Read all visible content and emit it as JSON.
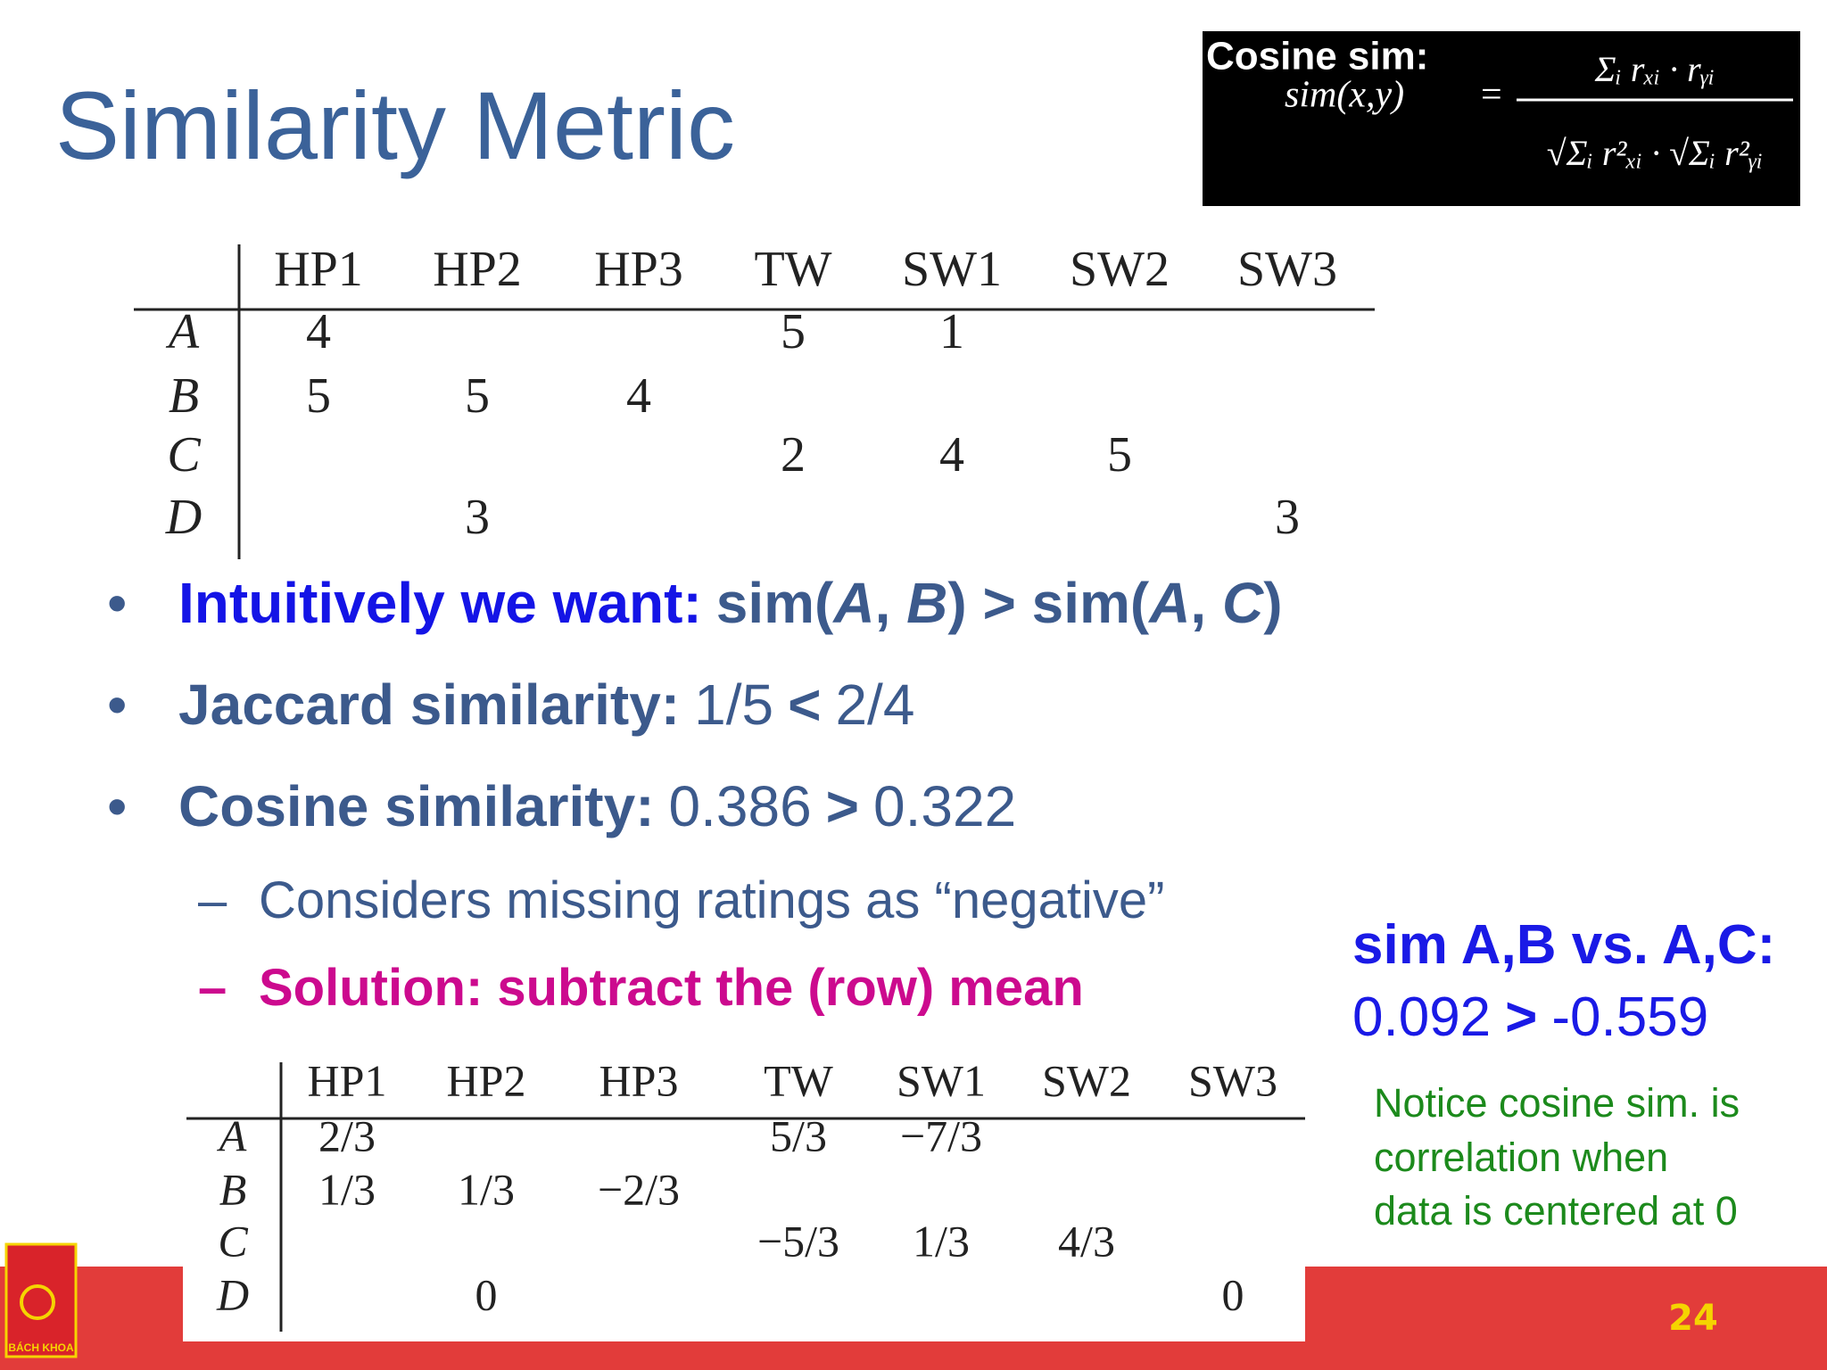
{
  "title": "Similarity Metric",
  "formula": {
    "label": "Cosine sim:",
    "lhs": "sim(x,y)",
    "equals": "=",
    "numerator": "Σᵢ rₓᵢ · rᵧᵢ",
    "denominator": "√Σᵢ r²ₓᵢ · √Σᵢ r²ᵧᵢ"
  },
  "table_1": {
    "columns": [
      "HP1",
      "HP2",
      "HP3",
      "TW",
      "SW1",
      "SW2",
      "SW3"
    ],
    "rows": [
      {
        "label": "A",
        "cells": [
          4,
          null,
          null,
          5,
          1,
          null,
          null
        ]
      },
      {
        "label": "B",
        "cells": [
          5,
          5,
          4,
          null,
          null,
          null,
          null
        ]
      },
      {
        "label": "C",
        "cells": [
          null,
          null,
          null,
          2,
          4,
          5,
          null
        ]
      },
      {
        "label": "D",
        "cells": [
          null,
          3,
          null,
          null,
          null,
          null,
          3
        ]
      }
    ]
  },
  "bullets": [
    {
      "parts": [
        "Intuitively we want:",
        "sim(",
        "A",
        ", ",
        "B",
        ") > sim(",
        "A",
        ", ",
        "C",
        ")"
      ]
    },
    {
      "parts": [
        "Jaccard similarity:",
        "1/5",
        "<",
        "2/4"
      ]
    },
    {
      "parts": [
        "Cosine similarity:",
        "0.386",
        ">",
        "0.322"
      ]
    }
  ],
  "sub_bullets": [
    "Considers missing ratings as “negative”",
    "Solution: subtract the (row) mean"
  ],
  "side_note": {
    "heading": "sim A,B vs. A,C:",
    "values": [
      "0.092",
      ">",
      "-0.559"
    ],
    "notice": [
      "Notice cosine sim. is",
      "correlation when",
      "data is centered at 0"
    ]
  },
  "table_2": {
    "columns": [
      "HP1",
      "HP2",
      "HP3",
      "TW",
      "SW1",
      "SW2",
      "SW3"
    ],
    "rows": [
      {
        "label": "A",
        "cells": [
          "2/3",
          null,
          null,
          "5/3",
          "−7/3",
          null,
          null
        ]
      },
      {
        "label": "B",
        "cells": [
          "1/3",
          "1/3",
          "−2/3",
          null,
          null,
          null,
          null
        ]
      },
      {
        "label": "C",
        "cells": [
          null,
          null,
          null,
          "−5/3",
          "1/3",
          "4/3",
          null
        ]
      },
      {
        "label": "D",
        "cells": [
          null,
          0,
          null,
          null,
          null,
          null,
          0
        ]
      }
    ]
  },
  "logo": "BÁCH KHOA",
  "page_number": "24"
}
